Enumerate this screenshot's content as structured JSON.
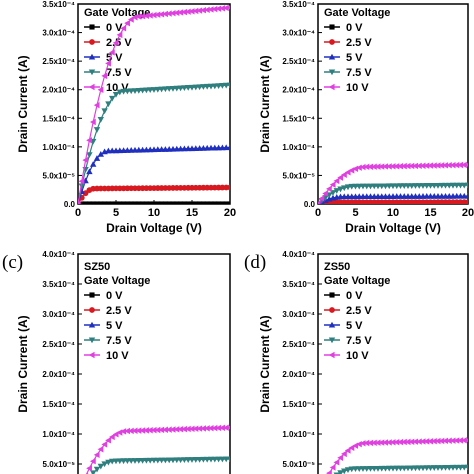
{
  "chart_data": [
    {
      "panel_letter": "",
      "title": "",
      "type": "line",
      "xlabel": "Drain Voltage (V)",
      "ylabel": "Drain Current (A)",
      "xlim": [
        0,
        20
      ],
      "ylim": [
        0,
        0.00035
      ],
      "x_ticks": [
        "0",
        "5",
        "10",
        "15",
        "20"
      ],
      "y_ticks": [
        "0.0",
        "5.0x10⁻⁵",
        "1.0x10⁻⁴",
        "1.5x10⁻⁴",
        "2.0x10⁻⁴",
        "2.5x10⁻⁴",
        "3.0x10⁻⁴",
        "3.5x10⁻⁴"
      ],
      "legend_title": "Gate Voltage",
      "legend_position": "top-left",
      "series": [
        {
          "name": "0 V",
          "color": "#000000",
          "marker": "square",
          "isat": 0.0,
          "vknee": 1.5
        },
        {
          "name": "2.5 V",
          "color": "#d71920",
          "marker": "circle",
          "isat": 2.7e-05,
          "vknee": 2.2
        },
        {
          "name": "5 V",
          "color": "#1f2fbf",
          "marker": "triangle-up",
          "isat": 9.3e-05,
          "vknee": 4.0
        },
        {
          "name": "7.5 V",
          "color": "#2f7f7f",
          "marker": "triangle-down",
          "isat": 0.000197,
          "vknee": 6.0
        },
        {
          "name": "10 V",
          "color": "#e040e0",
          "marker": "triangle-left",
          "isat": 0.000328,
          "vknee": 8.0
        }
      ]
    },
    {
      "panel_letter": "",
      "title": "",
      "type": "line",
      "xlabel": "Drain Voltage (V)",
      "ylabel": "Drain Current (A)",
      "xlim": [
        0,
        20
      ],
      "ylim": [
        0,
        0.00035
      ],
      "x_ticks": [
        "0",
        "5",
        "10",
        "15",
        "20"
      ],
      "y_ticks": [
        "0.0",
        "5.0x10⁻⁵",
        "1.0x10⁻⁴",
        "1.5x10⁻⁴",
        "2.0x10⁻⁴",
        "2.5x10⁻⁴",
        "3.0x10⁻⁴",
        "3.5x10⁻⁴"
      ],
      "legend_title": "Gate Voltage",
      "legend_position": "top-left",
      "series": [
        {
          "name": "0 V",
          "color": "#000000",
          "marker": "square",
          "isat": 0.0,
          "vknee": 1.5
        },
        {
          "name": "2.5 V",
          "color": "#d71920",
          "marker": "circle",
          "isat": 3e-06,
          "vknee": 2.0
        },
        {
          "name": "5 V",
          "color": "#1f2fbf",
          "marker": "triangle-up",
          "isat": 1.3e-05,
          "vknee": 3.5
        },
        {
          "name": "7.5 V",
          "color": "#2f7f7f",
          "marker": "triangle-down",
          "isat": 3.1e-05,
          "vknee": 5.0
        },
        {
          "name": "10 V",
          "color": "#e040e0",
          "marker": "triangle-left",
          "isat": 6.5e-05,
          "vknee": 6.5
        }
      ]
    },
    {
      "panel_letter": "(c)",
      "title": "SZ50",
      "type": "line",
      "xlabel": "",
      "ylabel": "Drain Current (A)",
      "xlim": [
        0,
        20
      ],
      "ylim": [
        0,
        0.0004
      ],
      "x_ticks": [],
      "y_ticks": [
        "",
        "5.0x10⁻⁵",
        "1.0x10⁻⁴",
        "1.5x10⁻⁴",
        "2.0x10⁻⁴",
        "2.5x10⁻⁴",
        "3.0x10⁻⁴",
        "3.5x10⁻⁴",
        "4.0x10⁻⁴"
      ],
      "legend_title": "Gate Voltage",
      "legend_position": "top-left",
      "series": [
        {
          "name": "0 V",
          "color": "#000000",
          "marker": "square",
          "isat": 0.0,
          "vknee": 1.5
        },
        {
          "name": "2.5 V",
          "color": "#d71920",
          "marker": "circle",
          "isat": 3e-06,
          "vknee": 2.0
        },
        {
          "name": "5 V",
          "color": "#1f2fbf",
          "marker": "triangle-up",
          "isat": 1.8e-05,
          "vknee": 3.5
        },
        {
          "name": "7.5 V",
          "color": "#2f7f7f",
          "marker": "triangle-down",
          "isat": 5.5e-05,
          "vknee": 5.0
        },
        {
          "name": "10 V",
          "color": "#e040e0",
          "marker": "triangle-left",
          "isat": 0.000105,
          "vknee": 6.5
        }
      ]
    },
    {
      "panel_letter": "(d)",
      "title": "ZS50",
      "type": "line",
      "xlabel": "",
      "ylabel": "Drain Current (A)",
      "xlim": [
        0,
        20
      ],
      "ylim": [
        0,
        0.0004
      ],
      "x_ticks": [],
      "y_ticks": [
        "",
        "5.0x10⁻⁵",
        "1.0x10⁻⁴",
        "1.5x10⁻⁴",
        "2.0x10⁻⁴",
        "2.5x10⁻⁴",
        "3.0x10⁻⁴",
        "3.5x10⁻⁴",
        "4.0x10⁻⁴"
      ],
      "legend_title": "Gate Voltage",
      "legend_position": "top-left",
      "series": [
        {
          "name": "0 V",
          "color": "#000000",
          "marker": "square",
          "isat": 0.0,
          "vknee": 1.5
        },
        {
          "name": "2.5 V",
          "color": "#d71920",
          "marker": "circle",
          "isat": 2e-06,
          "vknee": 2.0
        },
        {
          "name": "5 V",
          "color": "#1f2fbf",
          "marker": "triangle-up",
          "isat": 1.2e-05,
          "vknee": 3.5
        },
        {
          "name": "7.5 V",
          "color": "#2f7f7f",
          "marker": "triangle-down",
          "isat": 4.2e-05,
          "vknee": 5.0
        },
        {
          "name": "10 V",
          "color": "#e040e0",
          "marker": "triangle-left",
          "isat": 8.5e-05,
          "vknee": 6.5
        }
      ]
    }
  ]
}
